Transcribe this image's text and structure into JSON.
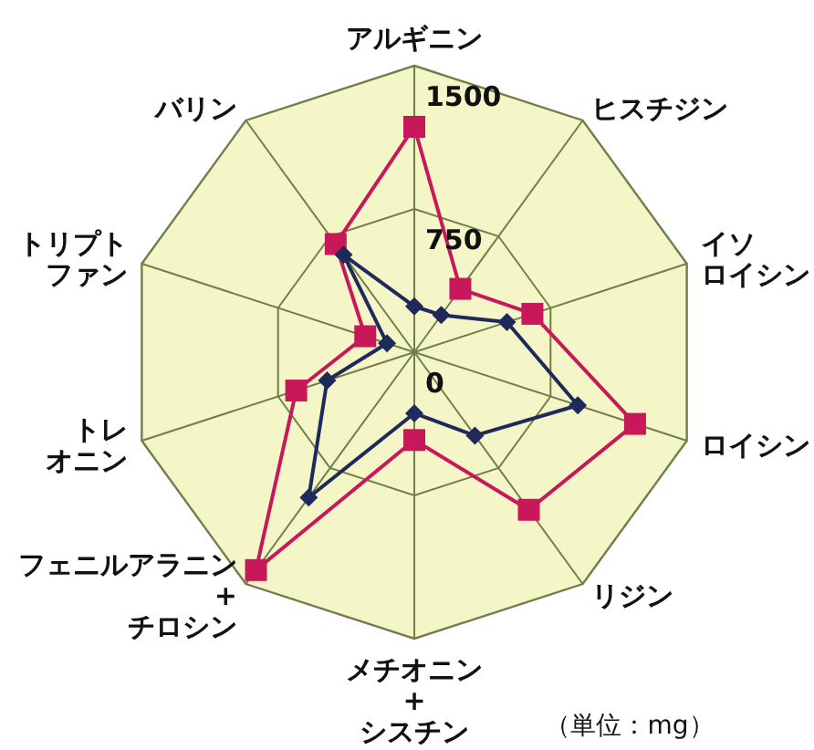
{
  "chart_data": {
    "type": "radar",
    "categories": [
      "アルギニン",
      "ヒスチジン",
      "イソロイシン",
      "ロイシン",
      "リジン",
      "メチオニン\n+\nシスチン",
      "フェニルアラニン\n+\nチロシン",
      "トレオニン",
      "トリプトファン",
      "バリン"
    ],
    "ylim": [
      0,
      1500
    ],
    "yticks": [
      0,
      750,
      1500
    ],
    "grid": true,
    "series": [
      {
        "color": "#c8185a",
        "marker": "square",
        "values": [
          1180,
          410,
          650,
          1215,
          1020,
          460,
          1410,
          650,
          270,
          700
        ]
      },
      {
        "color": "#1f2a5a",
        "marker": "diamond",
        "values": [
          240,
          240,
          510,
          900,
          540,
          320,
          940,
          480,
          150,
          630
        ]
      }
    ],
    "annotations": [
      "（単位：mg）"
    ]
  }
}
